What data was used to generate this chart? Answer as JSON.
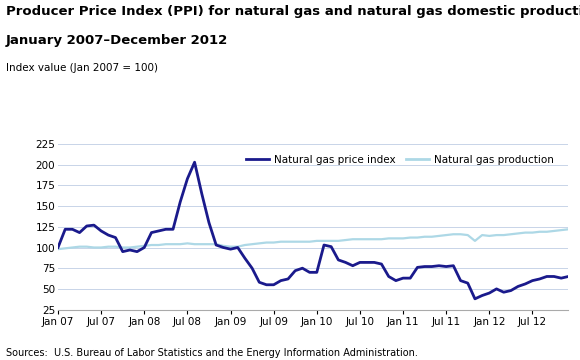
{
  "title_line1": "Producer Price Index (PPI) for natural gas and natural gas domestic production,",
  "title_line2": "January 2007–December 2012",
  "ylabel": "Index value (Jan 2007 = 100)",
  "source": "Sources:  U.S. Bureau of Labor Statistics and the Energy Information Administration.",
  "ylim": [
    25,
    225
  ],
  "yticks": [
    25,
    50,
    75,
    100,
    125,
    150,
    175,
    200,
    225
  ],
  "xtick_labels": [
    "Jan 07",
    "Jul 07",
    "Jan 08",
    "Jul 08",
    "Jan 09",
    "Jul 09",
    "Jan 10",
    "Jul 10",
    "Jan 11",
    "Jul 11",
    "Jan 12",
    "Jul 12"
  ],
  "xtick_positions": [
    0,
    6,
    12,
    18,
    24,
    30,
    36,
    42,
    48,
    54,
    60,
    66
  ],
  "price_index": [
    100,
    122,
    122,
    118,
    126,
    127,
    120,
    115,
    112,
    95,
    97,
    95,
    100,
    118,
    120,
    122,
    122,
    155,
    183,
    203,
    165,
    130,
    103,
    100,
    98,
    100,
    87,
    75,
    58,
    55,
    55,
    60,
    62,
    72,
    75,
    70,
    70,
    103,
    101,
    85,
    82,
    78,
    82,
    82,
    82,
    80,
    65,
    60,
    63,
    63,
    76,
    77,
    77,
    78,
    77,
    78,
    60,
    57,
    38,
    42,
    45,
    50,
    46,
    48,
    53,
    56,
    60,
    62,
    65,
    65,
    63,
    65
  ],
  "production": [
    98,
    99,
    100,
    101,
    101,
    100,
    100,
    101,
    101,
    100,
    100,
    101,
    102,
    103,
    103,
    104,
    104,
    104,
    105,
    104,
    104,
    104,
    104,
    102,
    101,
    101,
    103,
    104,
    105,
    106,
    106,
    107,
    107,
    107,
    107,
    107,
    108,
    108,
    108,
    108,
    109,
    110,
    110,
    110,
    110,
    110,
    111,
    111,
    111,
    112,
    112,
    113,
    113,
    114,
    115,
    116,
    116,
    115,
    108,
    115,
    114,
    115,
    115,
    116,
    117,
    118,
    118,
    119,
    119,
    120,
    121,
    122
  ],
  "price_color": "#1a1a8c",
  "production_color": "#add8e6",
  "bg_color": "#ffffff",
  "grid_color": "#c8d4e8",
  "legend_price": "Natural gas price index",
  "legend_production": "Natural gas production",
  "title_fontsize": 9.5,
  "ylabel_fontsize": 7.5,
  "tick_fontsize": 7.5,
  "source_fontsize": 7.0
}
